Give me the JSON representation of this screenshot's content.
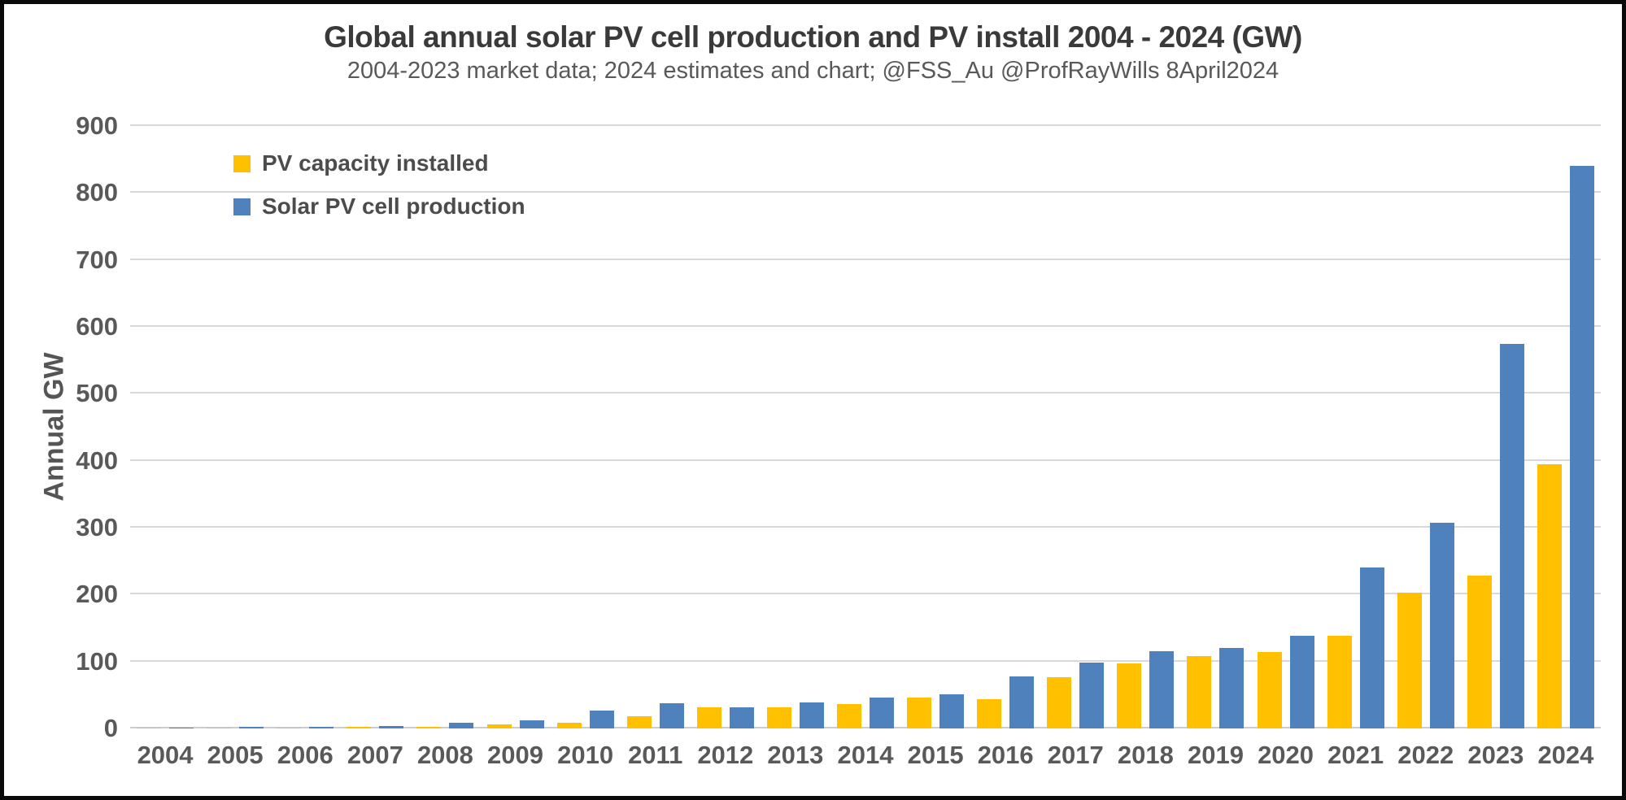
{
  "title": "Global annual solar PV cell production and PV install 2004 - 2024 (GW)",
  "subtitle": "2004-2023 market data;  2024 estimates and chart; @FSS_Au @ProfRayWills  8April2024",
  "y_axis_title": "Annual GW",
  "colors": {
    "installed": "#FFC000",
    "production": "#4F81BD",
    "gridline": "#D9D9D9",
    "text_dark": "#3A3A3A",
    "text_gray": "#595959",
    "border": "#0A0A0A"
  },
  "chart_data": {
    "type": "bar",
    "title": "Global annual solar PV cell production and PV install 2004 - 2024 (GW)",
    "subtitle": "2004-2023 market data;  2024 estimates and chart; @FSS_Au @ProfRayWills  8April2024",
    "xlabel": "",
    "ylabel": "Annual GW",
    "ylim": [
      0,
      900
    ],
    "ytick_step": 100,
    "grid": true,
    "legend_position": "top-left",
    "categories": [
      "2004",
      "2005",
      "2006",
      "2007",
      "2008",
      "2009",
      "2010",
      "2011",
      "2012",
      "2013",
      "2014",
      "2015",
      "2016",
      "2017",
      "2018",
      "2019",
      "2020",
      "2021",
      "2022",
      "2023",
      "2024"
    ],
    "series": [
      {
        "name": "PV capacity installed",
        "color": "#FFC000",
        "values": [
          1,
          1.4,
          1.5,
          2,
          3,
          6,
          8,
          18,
          31,
          31,
          37,
          46,
          44,
          77,
          97,
          108,
          114,
          139,
          203,
          228,
          395
        ]
      },
      {
        "name": "Solar PV cell production",
        "color": "#4F81BD",
        "values": [
          1.2,
          2,
          2.5,
          4,
          8,
          12,
          27,
          38,
          31,
          39,
          46,
          51,
          78,
          98,
          116,
          120,
          139,
          240,
          307,
          575,
          840
        ]
      }
    ]
  }
}
